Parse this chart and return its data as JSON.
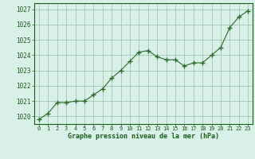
{
  "x": [
    0,
    1,
    2,
    3,
    4,
    5,
    6,
    7,
    8,
    9,
    10,
    11,
    12,
    13,
    14,
    15,
    16,
    17,
    18,
    19,
    20,
    21,
    22,
    23
  ],
  "y": [
    1019.8,
    1020.2,
    1020.9,
    1020.9,
    1021.0,
    1021.0,
    1021.4,
    1021.8,
    1022.5,
    1023.0,
    1023.6,
    1024.2,
    1024.3,
    1023.9,
    1023.7,
    1023.7,
    1023.3,
    1023.5,
    1023.5,
    1024.0,
    1024.5,
    1025.8,
    1026.5,
    1026.9
  ],
  "line_color": "#2d6a2d",
  "marker": "+",
  "bg_color": "#d8f0e8",
  "grid_color": "#a0c8b0",
  "text_color": "#1a5c1a",
  "xlabel": "Graphe pression niveau de la mer (hPa)",
  "ylim_min": 1019.5,
  "ylim_max": 1027.4,
  "xlim_min": -0.5,
  "xlim_max": 23.5,
  "yticks": [
    1020,
    1021,
    1022,
    1023,
    1024,
    1025,
    1026,
    1027
  ],
  "xticks": [
    0,
    1,
    2,
    3,
    4,
    5,
    6,
    7,
    8,
    9,
    10,
    11,
    12,
    13,
    14,
    15,
    16,
    17,
    18,
    19,
    20,
    21,
    22,
    23
  ],
  "xtick_labels": [
    "0",
    "1",
    "2",
    "3",
    "4",
    "5",
    "6",
    "7",
    "8",
    "9",
    "10",
    "11",
    "12",
    "13",
    "14",
    "15",
    "16",
    "17",
    "18",
    "19",
    "20",
    "21",
    "22",
    "23"
  ]
}
